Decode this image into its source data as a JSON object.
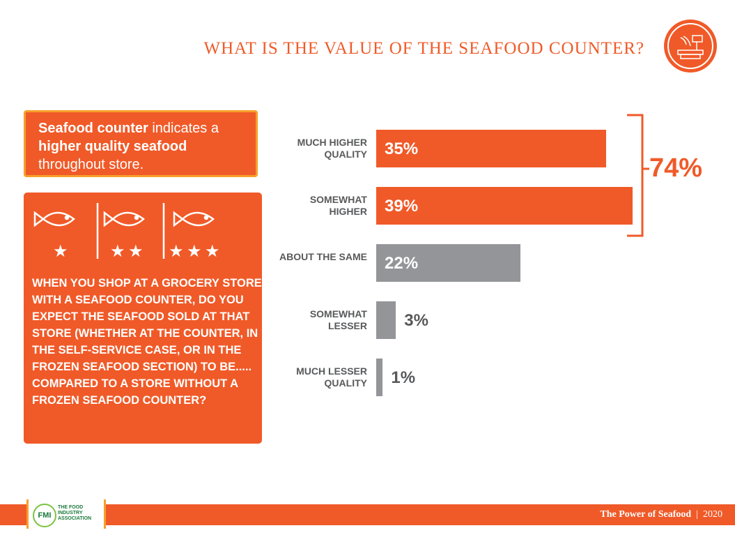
{
  "title": "WHAT IS THE VALUE OF THE SEAFOOD COUNTER?",
  "callout": {
    "bold1": "Seafood counter",
    "text1": " indicates a ",
    "bold2": "higher quality seafood",
    "text2": " throughout store."
  },
  "question": "WHEN YOU SHOP AT A GROCERY STORE WITH A SEAFOOD COUNTER, DO YOU EXPECT THE SEAFOOD SOLD AT THAT STORE (WHETHER AT THE COUNTER, IN THE SELF-SERVICE CASE, OR IN THE FROZEN SEAFOOD SECTION) TO  BE..... COMPARED TO A STORE WITHOUT A FROZEN SEAFOOD COUNTER?",
  "chart_data": {
    "type": "bar",
    "orientation": "horizontal",
    "categories": [
      "MUCH HIGHER QUALITY",
      "SOMEWHAT HIGHER",
      "ABOUT THE SAME",
      "SOMEWHAT LESSER",
      "MUCH LESSER QUALITY"
    ],
    "values": [
      35,
      39,
      22,
      3,
      1
    ],
    "labels": [
      "35%",
      "39%",
      "22%",
      "3%",
      "1%"
    ],
    "colors": [
      "#f05a28",
      "#f05a28",
      "#939598",
      "#939598",
      "#939598"
    ],
    "bracket_label": "74%"
  },
  "footer": {
    "logo_text": "FMI",
    "logo_sub": "THE FOOD INDUSTRY ASSOCIATION",
    "text": "The Power of Seafood",
    "year": "2020"
  },
  "colors": {
    "accent": "#f05a28",
    "gold": "#f7a02a",
    "gray": "#939598"
  }
}
